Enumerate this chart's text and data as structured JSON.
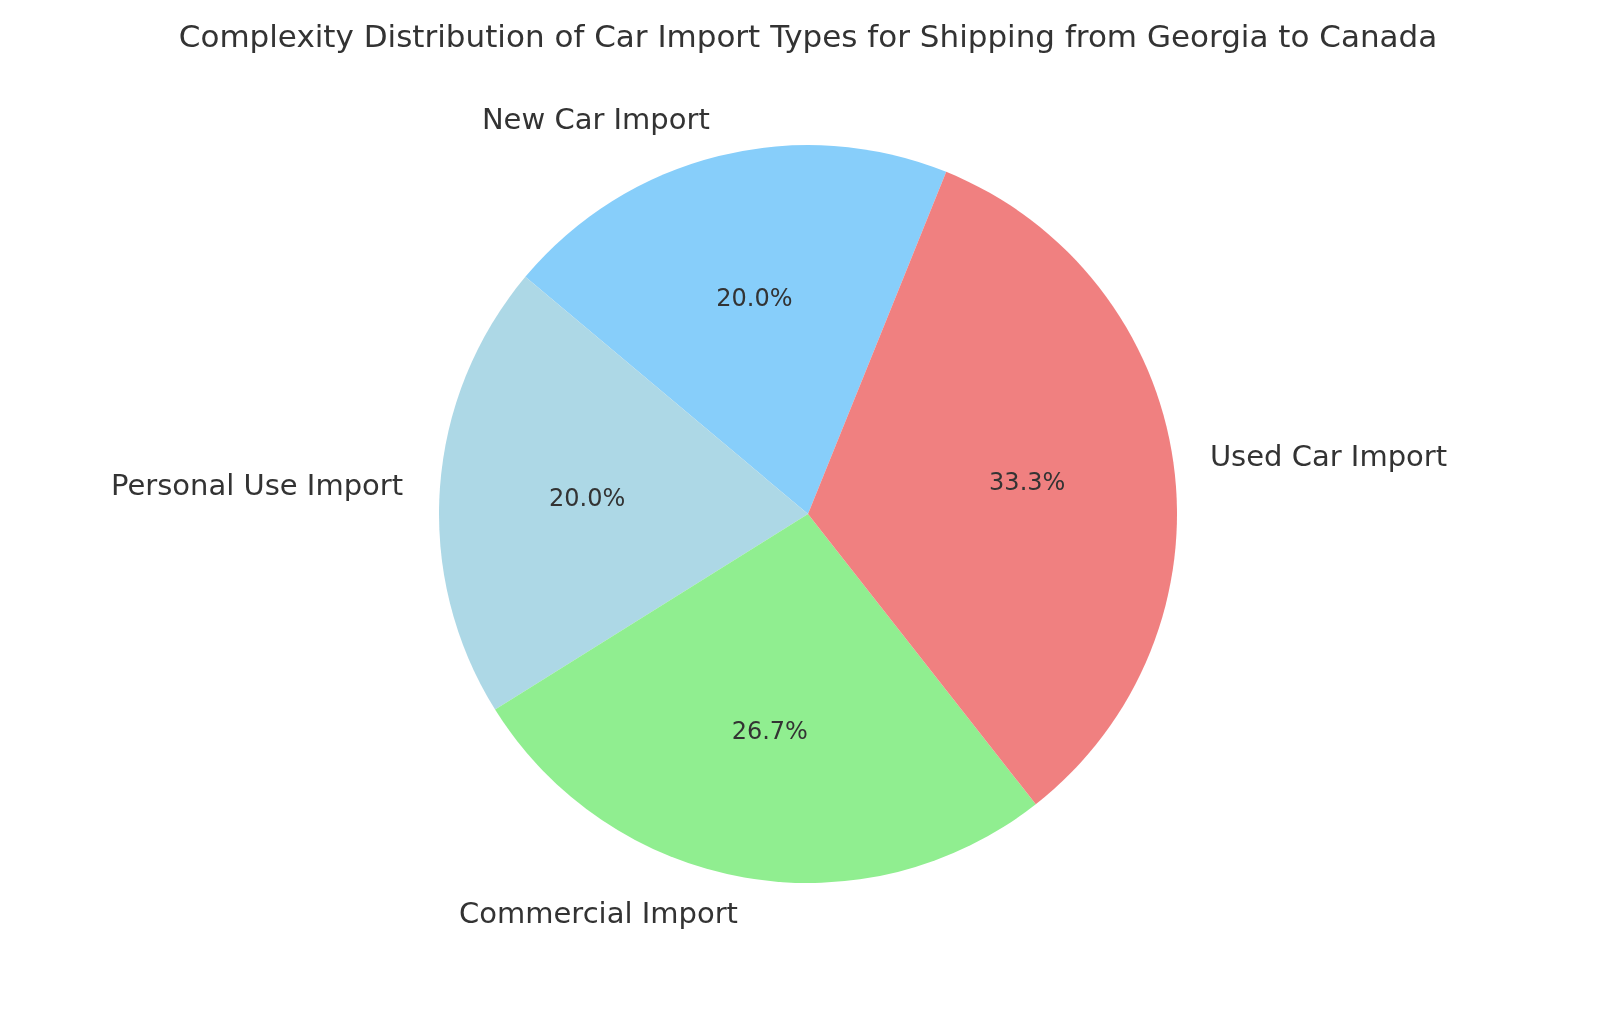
{
  "chart_data": {
    "type": "pie",
    "title": "Complexity Distribution of Car Import Types for Shipping from Georgia to Canada",
    "categories": [
      "New Car Import",
      "Personal Use Import",
      "Commercial Import",
      "Used Car Import"
    ],
    "values": [
      20.0,
      20.0,
      26.7,
      33.3
    ],
    "value_labels": [
      "20.0%",
      "20.0%",
      "26.7%",
      "33.3%"
    ],
    "colors": [
      "#87cefa",
      "#add8e6",
      "#90ee90",
      "#f08080"
    ]
  }
}
